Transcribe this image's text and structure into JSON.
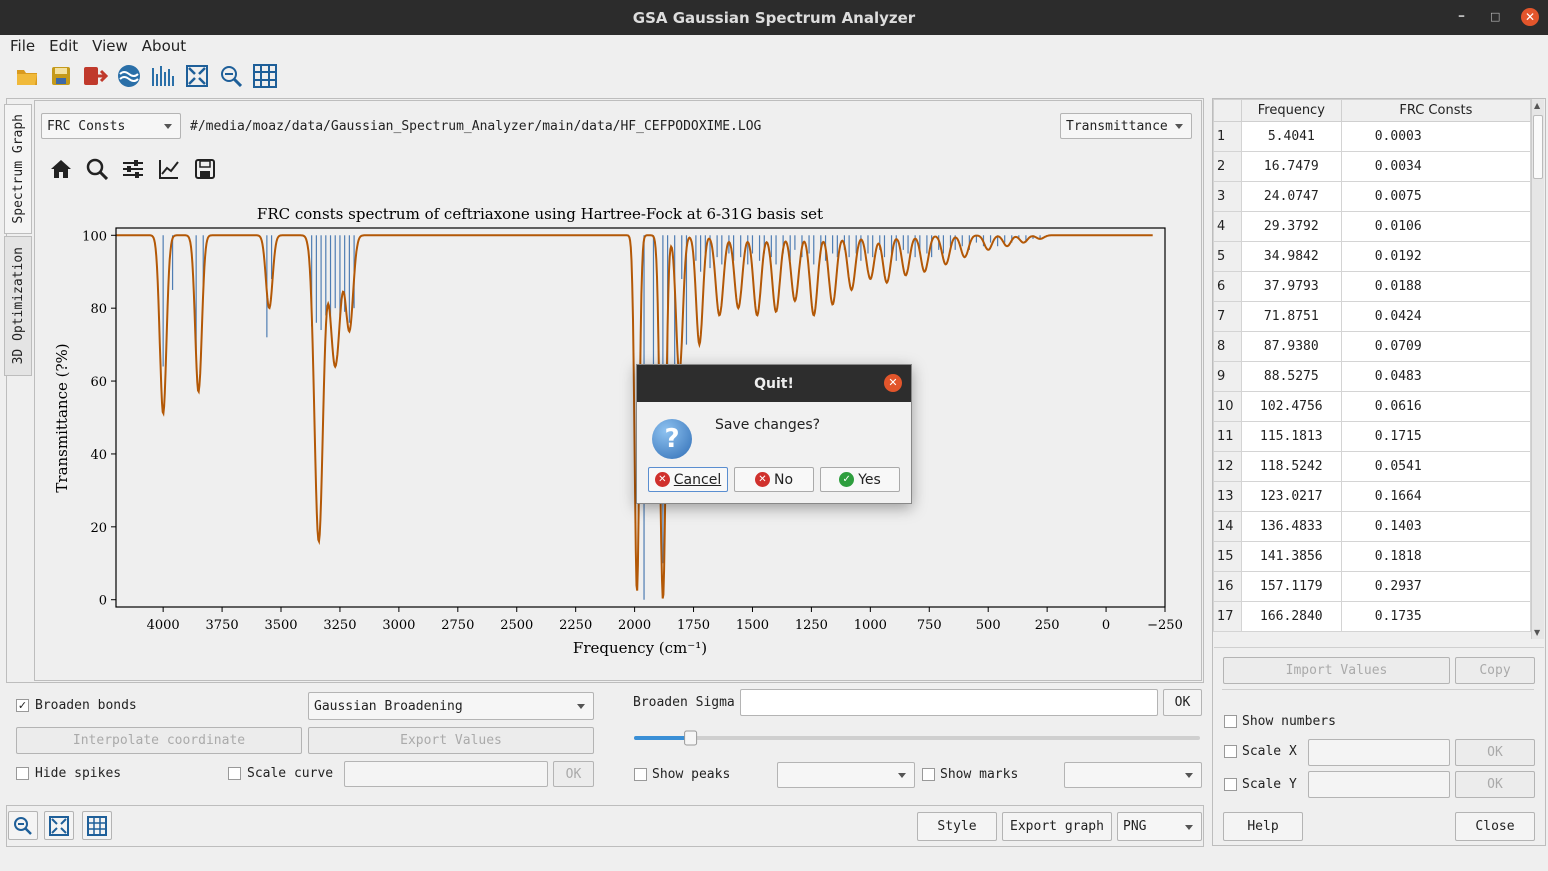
{
  "window": {
    "title": "GSA Gaussian Spectrum Analyzer"
  },
  "menu": {
    "items": [
      "File",
      "Edit",
      "View",
      "About"
    ]
  },
  "toolbar": {
    "icons": [
      "open-folder-icon",
      "save-icon",
      "exit-icon",
      "wave-icon",
      "spectrum-icon",
      "fit-icon",
      "zoom-out-icon",
      "grid-icon"
    ]
  },
  "tabs": {
    "spectrum": "Spectrum Graph",
    "optimization": "3D Optimization"
  },
  "graph": {
    "property_select": "FRC Consts",
    "file_path": "#/media/moaz/data/Gaussian_Spectrum_Analyzer/main/data/HF_CEFPODOXIME.LOG",
    "mode_select": "Transmittance",
    "curve_color": "#b35806",
    "spike_color": "#4f7db3"
  },
  "chart_data": {
    "type": "line",
    "title": "FRC consts spectrum of ceftriaxone using Hartree-Fock at 6-31G basis set",
    "xlabel": "Frequency (cm⁻¹)",
    "ylabel": "Transmittance (?%)",
    "xlim": [
      4200,
      -250
    ],
    "ylim": [
      -2,
      102
    ],
    "xticks": [
      4000,
      3750,
      3500,
      3250,
      3000,
      2750,
      2500,
      2250,
      2000,
      1750,
      1500,
      1250,
      1000,
      750,
      500,
      250,
      0,
      -250
    ],
    "xtick_labels": [
      "4000",
      "3750",
      "3500",
      "3250",
      "3000",
      "2750",
      "2500",
      "2250",
      "2000",
      "1750",
      "1500",
      "1250",
      "1000",
      "750",
      "500",
      "250",
      "0",
      "−250"
    ],
    "yticks": [
      0,
      20,
      40,
      60,
      80,
      100
    ],
    "peaks": [
      {
        "x": 4000,
        "depth": 49,
        "width": 14
      },
      {
        "x": 3850,
        "depth": 43,
        "width": 14
      },
      {
        "x": 3550,
        "depth": 20,
        "width": 14
      },
      {
        "x": 3340,
        "depth": 84,
        "width": 18
      },
      {
        "x": 3270,
        "depth": 36,
        "width": 20
      },
      {
        "x": 3210,
        "depth": 26,
        "width": 16
      },
      {
        "x": 1990,
        "depth": 98,
        "width": 10
      },
      {
        "x": 1880,
        "depth": 100,
        "width": 12
      },
      {
        "x": 1810,
        "depth": 38,
        "width": 14
      },
      {
        "x": 1725,
        "depth": 30,
        "width": 14
      },
      {
        "x": 1640,
        "depth": 22,
        "width": 16
      },
      {
        "x": 1560,
        "depth": 20,
        "width": 16
      },
      {
        "x": 1480,
        "depth": 22,
        "width": 16
      },
      {
        "x": 1400,
        "depth": 21,
        "width": 16
      },
      {
        "x": 1320,
        "depth": 18,
        "width": 16
      },
      {
        "x": 1240,
        "depth": 22,
        "width": 16
      },
      {
        "x": 1160,
        "depth": 19,
        "width": 16
      },
      {
        "x": 1080,
        "depth": 15,
        "width": 16
      },
      {
        "x": 1000,
        "depth": 12,
        "width": 16
      },
      {
        "x": 930,
        "depth": 13,
        "width": 16
      },
      {
        "x": 850,
        "depth": 11,
        "width": 16
      },
      {
        "x": 770,
        "depth": 10,
        "width": 16
      },
      {
        "x": 680,
        "depth": 8,
        "width": 16
      },
      {
        "x": 600,
        "depth": 6,
        "width": 16
      },
      {
        "x": 500,
        "depth": 4,
        "width": 16
      },
      {
        "x": 420,
        "depth": 3,
        "width": 16
      },
      {
        "x": 350,
        "depth": 2,
        "width": 16
      },
      {
        "x": 280,
        "depth": 1,
        "width": 16
      }
    ],
    "spikes": [
      {
        "x": 4000,
        "y": 64
      },
      {
        "x": 3960,
        "y": 85
      },
      {
        "x": 3860,
        "y": 68
      },
      {
        "x": 3830,
        "y": 86
      },
      {
        "x": 3560,
        "y": 72
      },
      {
        "x": 3540,
        "y": 88
      },
      {
        "x": 3370,
        "y": 75
      },
      {
        "x": 3350,
        "y": 76
      },
      {
        "x": 3330,
        "y": 74
      },
      {
        "x": 3310,
        "y": 78
      },
      {
        "x": 3290,
        "y": 77
      },
      {
        "x": 3270,
        "y": 80
      },
      {
        "x": 3250,
        "y": 78
      },
      {
        "x": 3230,
        "y": 79
      },
      {
        "x": 3210,
        "y": 76
      },
      {
        "x": 3190,
        "y": 80
      },
      {
        "x": 1960,
        "y": 0
      },
      {
        "x": 1920,
        "y": 62
      },
      {
        "x": 1880,
        "y": 10
      },
      {
        "x": 1860,
        "y": 60
      },
      {
        "x": 1830,
        "y": 62
      },
      {
        "x": 1800,
        "y": 88
      },
      {
        "x": 1780,
        "y": 70
      },
      {
        "x": 1740,
        "y": 93
      },
      {
        "x": 1720,
        "y": 90
      },
      {
        "x": 1700,
        "y": 95
      },
      {
        "x": 1680,
        "y": 91
      },
      {
        "x": 1650,
        "y": 94
      },
      {
        "x": 1630,
        "y": 92
      },
      {
        "x": 1600,
        "y": 95
      },
      {
        "x": 1580,
        "y": 93
      },
      {
        "x": 1550,
        "y": 94
      },
      {
        "x": 1520,
        "y": 92
      },
      {
        "x": 1500,
        "y": 95
      },
      {
        "x": 1470,
        "y": 93
      },
      {
        "x": 1450,
        "y": 95
      },
      {
        "x": 1420,
        "y": 94
      },
      {
        "x": 1400,
        "y": 92
      },
      {
        "x": 1370,
        "y": 95
      },
      {
        "x": 1340,
        "y": 93
      },
      {
        "x": 1320,
        "y": 96
      },
      {
        "x": 1290,
        "y": 94
      },
      {
        "x": 1260,
        "y": 95
      },
      {
        "x": 1240,
        "y": 92
      },
      {
        "x": 1210,
        "y": 95
      },
      {
        "x": 1190,
        "y": 93
      },
      {
        "x": 1160,
        "y": 95
      },
      {
        "x": 1140,
        "y": 94
      },
      {
        "x": 1110,
        "y": 96
      },
      {
        "x": 1090,
        "y": 94
      },
      {
        "x": 1060,
        "y": 95
      },
      {
        "x": 1040,
        "y": 93
      },
      {
        "x": 1010,
        "y": 95
      },
      {
        "x": 990,
        "y": 94
      },
      {
        "x": 960,
        "y": 96
      },
      {
        "x": 940,
        "y": 94
      },
      {
        "x": 910,
        "y": 95
      },
      {
        "x": 890,
        "y": 93
      },
      {
        "x": 860,
        "y": 96
      },
      {
        "x": 840,
        "y": 95
      },
      {
        "x": 810,
        "y": 94
      },
      {
        "x": 790,
        "y": 96
      },
      {
        "x": 760,
        "y": 95
      },
      {
        "x": 740,
        "y": 94
      },
      {
        "x": 710,
        "y": 96
      },
      {
        "x": 690,
        "y": 95
      },
      {
        "x": 660,
        "y": 97
      },
      {
        "x": 640,
        "y": 96
      },
      {
        "x": 610,
        "y": 97
      },
      {
        "x": 580,
        "y": 96
      },
      {
        "x": 550,
        "y": 98
      },
      {
        "x": 520,
        "y": 97
      },
      {
        "x": 490,
        "y": 98
      },
      {
        "x": 460,
        "y": 97
      },
      {
        "x": 430,
        "y": 98
      },
      {
        "x": 400,
        "y": 98
      },
      {
        "x": 370,
        "y": 99
      },
      {
        "x": 340,
        "y": 98
      },
      {
        "x": 310,
        "y": 99
      },
      {
        "x": 280,
        "y": 99
      }
    ]
  },
  "frc_table": {
    "headers": [
      "Frequency",
      "FRC Consts"
    ],
    "rows": [
      [
        "1",
        "5.4041",
        "0.0003"
      ],
      [
        "2",
        "16.7479",
        "0.0034"
      ],
      [
        "3",
        "24.0747",
        "0.0075"
      ],
      [
        "4",
        "29.3792",
        "0.0106"
      ],
      [
        "5",
        "34.9842",
        "0.0192"
      ],
      [
        "6",
        "37.9793",
        "0.0188"
      ],
      [
        "7",
        "71.8751",
        "0.0424"
      ],
      [
        "8",
        "87.9380",
        "0.0709"
      ],
      [
        "9",
        "88.5275",
        "0.0483"
      ],
      [
        "10",
        "102.4756",
        "0.0616"
      ],
      [
        "11",
        "115.1813",
        "0.1715"
      ],
      [
        "12",
        "118.5242",
        "0.0541"
      ],
      [
        "13",
        "123.0217",
        "0.1664"
      ],
      [
        "14",
        "136.4833",
        "0.1403"
      ],
      [
        "15",
        "141.3856",
        "0.1818"
      ],
      [
        "16",
        "157.1179",
        "0.2937"
      ],
      [
        "17",
        "166.2840",
        "0.1735"
      ]
    ]
  },
  "controls": {
    "broaden_bonds": "Broaden bonds",
    "broadening_type": "Gaussian Broadening",
    "interpolate": "Interpolate coordinate",
    "export_values": "Export Values",
    "hide_spikes": "Hide spikes",
    "scale_curve": "Scale curve",
    "ok": "OK",
    "broaden_sigma": "Broaden Sigma",
    "show_peaks": "Show peaks",
    "show_marks": "Show marks",
    "slider_fraction": 0.1
  },
  "right_controls": {
    "import_values": "Import Values",
    "copy": "Copy",
    "show_numbers": "Show numbers",
    "scale_x": "Scale X",
    "scale_y": "Scale Y",
    "ok": "OK",
    "help": "Help",
    "close": "Close"
  },
  "bottom": {
    "style": "Style",
    "export_graph": "Export graph",
    "format": "PNG"
  },
  "dialog": {
    "title": "Quit!",
    "message": "Save changes?",
    "cancel": "Cancel",
    "no": "No",
    "yes": "Yes"
  }
}
